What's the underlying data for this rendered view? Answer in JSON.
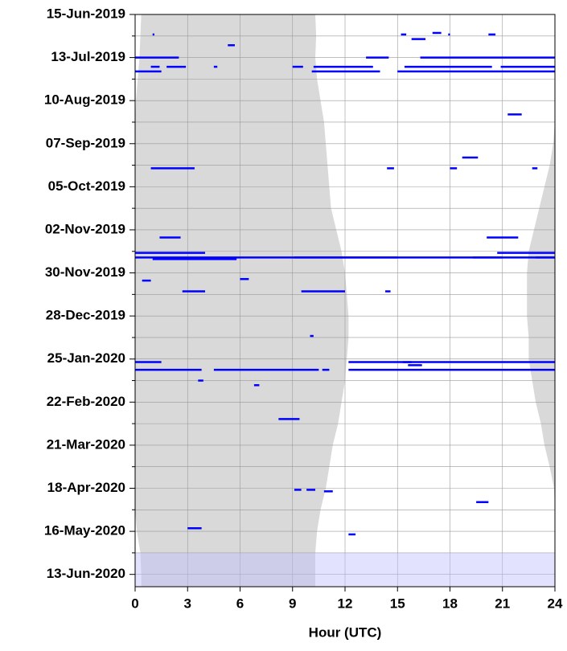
{
  "chart_data": {
    "type": "timeline",
    "xlabel": "Hour (UTC)",
    "xlim": [
      0,
      24
    ],
    "xticks": [
      0,
      3,
      6,
      9,
      12,
      15,
      18,
      21,
      24
    ],
    "ylim": [
      "2019-06-15",
      "2020-06-21"
    ],
    "yticks": [
      {
        "value": "2019-06-15",
        "label": "15-Jun-2019"
      },
      {
        "value": "2019-07-13",
        "label": "13-Jul-2019"
      },
      {
        "value": "2019-08-10",
        "label": "10-Aug-2019"
      },
      {
        "value": "2019-09-07",
        "label": "07-Sep-2019"
      },
      {
        "value": "2019-10-05",
        "label": "05-Oct-2019"
      },
      {
        "value": "2019-11-02",
        "label": "02-Nov-2019"
      },
      {
        "value": "2019-11-30",
        "label": "30-Nov-2019"
      },
      {
        "value": "2019-12-28",
        "label": "28-Dec-2019"
      },
      {
        "value": "2020-01-25",
        "label": "25-Jan-2020"
      },
      {
        "value": "2020-02-22",
        "label": "22-Feb-2020"
      },
      {
        "value": "2020-03-21",
        "label": "21-Mar-2020"
      },
      {
        "value": "2020-04-18",
        "label": "18-Apr-2020"
      },
      {
        "value": "2020-05-16",
        "label": "16-May-2020"
      },
      {
        "value": "2020-06-13",
        "label": "13-Jun-2020"
      }
    ],
    "yminorticks": [
      "2019-06-29",
      "2019-07-27",
      "2019-08-24",
      "2019-09-21",
      "2019-10-19",
      "2019-11-16",
      "2019-12-14",
      "2020-01-11",
      "2020-02-08",
      "2020-03-07",
      "2020-04-04",
      "2020-05-02",
      "2020-05-30"
    ],
    "grid": true,
    "shade_color": "#d9d9d9",
    "shade": [
      {
        "date": "2019-06-15",
        "dawn": 10.3,
        "dusk": 0.35
      },
      {
        "date": "2019-06-29",
        "dawn": 10.35,
        "dusk": 0.3
      },
      {
        "date": "2019-07-13",
        "dawn": 10.3,
        "dusk": 0.25
      },
      {
        "date": "2019-07-27",
        "dawn": 10.4,
        "dusk": 0.15
      },
      {
        "date": "2019-08-10",
        "dawn": 10.6,
        "dusk": 0.05
      },
      {
        "date": "2019-08-24",
        "dawn": 10.8,
        "dusk": 0
      },
      {
        "date": "2019-09-07",
        "dawn": 10.9,
        "dusk": 23.9
      },
      {
        "date": "2019-09-21",
        "dawn": 11.0,
        "dusk": 23.7
      },
      {
        "date": "2019-10-05",
        "dawn": 11.1,
        "dusk": 23.4
      },
      {
        "date": "2019-10-19",
        "dawn": 11.2,
        "dusk": 23.1
      },
      {
        "date": "2019-11-02",
        "dawn": 11.5,
        "dusk": 22.8
      },
      {
        "date": "2019-11-16",
        "dawn": 11.8,
        "dusk": 22.5
      },
      {
        "date": "2019-11-30",
        "dawn": 12.0,
        "dusk": 22.4
      },
      {
        "date": "2019-12-14",
        "dawn": 12.1,
        "dusk": 22.4
      },
      {
        "date": "2019-12-28",
        "dawn": 12.2,
        "dusk": 22.4
      },
      {
        "date": "2020-01-11",
        "dawn": 12.2,
        "dusk": 22.5
      },
      {
        "date": "2020-01-25",
        "dawn": 12.1,
        "dusk": 22.5
      },
      {
        "date": "2020-02-08",
        "dawn": 12.0,
        "dusk": 22.7
      },
      {
        "date": "2020-02-22",
        "dawn": 11.8,
        "dusk": 22.9
      },
      {
        "date": "2020-03-07",
        "dawn": 11.6,
        "dusk": 23.2
      },
      {
        "date": "2020-03-21",
        "dawn": 11.3,
        "dusk": 23.4
      },
      {
        "date": "2020-04-04",
        "dawn": 11.1,
        "dusk": 23.7
      },
      {
        "date": "2020-04-18",
        "dawn": 10.9,
        "dusk": 23.95
      },
      {
        "date": "2020-05-02",
        "dawn": 10.6,
        "dusk": 0
      },
      {
        "date": "2020-05-16",
        "dawn": 10.4,
        "dusk": 0.1
      },
      {
        "date": "2020-05-30",
        "dawn": 10.3,
        "dusk": 0.3
      },
      {
        "date": "2020-06-13",
        "dawn": 10.3,
        "dusk": 0.35
      },
      {
        "date": "2020-06-21",
        "dawn": 10.3,
        "dusk": 0.35
      }
    ],
    "highlight": [
      "2020-05-30",
      "2020-06-21"
    ],
    "highlight_color": "rgba(190,190,255,0.45)",
    "color": "#0000ff",
    "segments": [
      {
        "date": "2019-06-27",
        "start": 17.0,
        "end": 17.5
      },
      {
        "date": "2019-06-28",
        "start": 1.0,
        "end": 1.1
      },
      {
        "date": "2019-06-28",
        "start": 15.2,
        "end": 15.5
      },
      {
        "date": "2019-06-28",
        "start": 17.9,
        "end": 18.0
      },
      {
        "date": "2019-06-28",
        "start": 20.2,
        "end": 20.6
      },
      {
        "date": "2019-07-01",
        "start": 15.8,
        "end": 16.6
      },
      {
        "date": "2019-07-05",
        "start": 5.3,
        "end": 5.7
      },
      {
        "date": "2019-07-13",
        "start": 0,
        "end": 2.5
      },
      {
        "date": "2019-07-13",
        "start": 13.2,
        "end": 14.5
      },
      {
        "date": "2019-07-13",
        "start": 16.3,
        "end": 18.0
      },
      {
        "date": "2019-07-13",
        "start": 18.0,
        "end": 24
      },
      {
        "date": "2019-07-19",
        "start": 0.9,
        "end": 1.4
      },
      {
        "date": "2019-07-19",
        "start": 1.8,
        "end": 2.9
      },
      {
        "date": "2019-07-19",
        "start": 4.5,
        "end": 4.7
      },
      {
        "date": "2019-07-19",
        "start": 9.0,
        "end": 9.6
      },
      {
        "date": "2019-07-19",
        "start": 10.2,
        "end": 13.6
      },
      {
        "date": "2019-07-19",
        "start": 15.4,
        "end": 20.4
      },
      {
        "date": "2019-07-19",
        "start": 20.9,
        "end": 24
      },
      {
        "date": "2019-07-22",
        "start": 0,
        "end": 1.5
      },
      {
        "date": "2019-07-22",
        "start": 10.1,
        "end": 14.0
      },
      {
        "date": "2019-07-22",
        "start": 15.0,
        "end": 24
      },
      {
        "date": "2019-08-19",
        "start": 21.3,
        "end": 22.1
      },
      {
        "date": "2019-09-16",
        "start": 18.7,
        "end": 19.6
      },
      {
        "date": "2019-09-23",
        "start": 0.9,
        "end": 3.4
      },
      {
        "date": "2019-09-23",
        "start": 14.4,
        "end": 14.8
      },
      {
        "date": "2019-09-23",
        "start": 18.0,
        "end": 18.4
      },
      {
        "date": "2019-09-23",
        "start": 22.7,
        "end": 23.0
      },
      {
        "date": "2019-11-07",
        "start": 1.4,
        "end": 2.6
      },
      {
        "date": "2019-11-07",
        "start": 20.1,
        "end": 21.9
      },
      {
        "date": "2019-11-17",
        "start": 0,
        "end": 4.0
      },
      {
        "date": "2019-11-17",
        "start": 20.7,
        "end": 24
      },
      {
        "date": "2019-11-20",
        "start": 0,
        "end": 24
      },
      {
        "date": "2019-11-20",
        "start": 9.1,
        "end": 15.0
      },
      {
        "date": "2019-11-20",
        "start": 19.3,
        "end": 21.0
      },
      {
        "date": "2019-11-20",
        "start": 22.9,
        "end": 24
      },
      {
        "date": "2019-11-21",
        "start": 1.0,
        "end": 5.8
      },
      {
        "date": "2019-12-04",
        "start": 6.0,
        "end": 6.5
      },
      {
        "date": "2019-12-05",
        "start": 0.4,
        "end": 0.9
      },
      {
        "date": "2019-12-12",
        "start": 2.7,
        "end": 4.0
      },
      {
        "date": "2019-12-12",
        "start": 9.5,
        "end": 12.0
      },
      {
        "date": "2019-12-12",
        "start": 14.3,
        "end": 14.6
      },
      {
        "date": "2020-01-10",
        "start": 10.0,
        "end": 10.2
      },
      {
        "date": "2020-01-27",
        "start": 0,
        "end": 1.5
      },
      {
        "date": "2020-01-27",
        "start": 12.2,
        "end": 24
      },
      {
        "date": "2020-01-27",
        "start": 15.3,
        "end": 15.8
      },
      {
        "date": "2020-01-29",
        "start": 15.6,
        "end": 16.4
      },
      {
        "date": "2020-02-01",
        "start": 0,
        "end": 3.8
      },
      {
        "date": "2020-02-01",
        "start": 4.5,
        "end": 10.5
      },
      {
        "date": "2020-02-01",
        "start": 10.7,
        "end": 11.1
      },
      {
        "date": "2020-02-01",
        "start": 12.2,
        "end": 24
      },
      {
        "date": "2020-02-08",
        "start": 3.6,
        "end": 3.9
      },
      {
        "date": "2020-02-11",
        "start": 6.8,
        "end": 7.1
      },
      {
        "date": "2020-03-04",
        "start": 8.2,
        "end": 9.4
      },
      {
        "date": "2020-04-19",
        "start": 9.1,
        "end": 9.5
      },
      {
        "date": "2020-04-19",
        "start": 9.8,
        "end": 10.3
      },
      {
        "date": "2020-04-20",
        "start": 10.8,
        "end": 11.3
      },
      {
        "date": "2020-04-27",
        "start": 19.5,
        "end": 20.2
      },
      {
        "date": "2020-05-14",
        "start": 3.0,
        "end": 3.8
      },
      {
        "date": "2020-05-18",
        "start": 12.2,
        "end": 12.6
      }
    ]
  }
}
